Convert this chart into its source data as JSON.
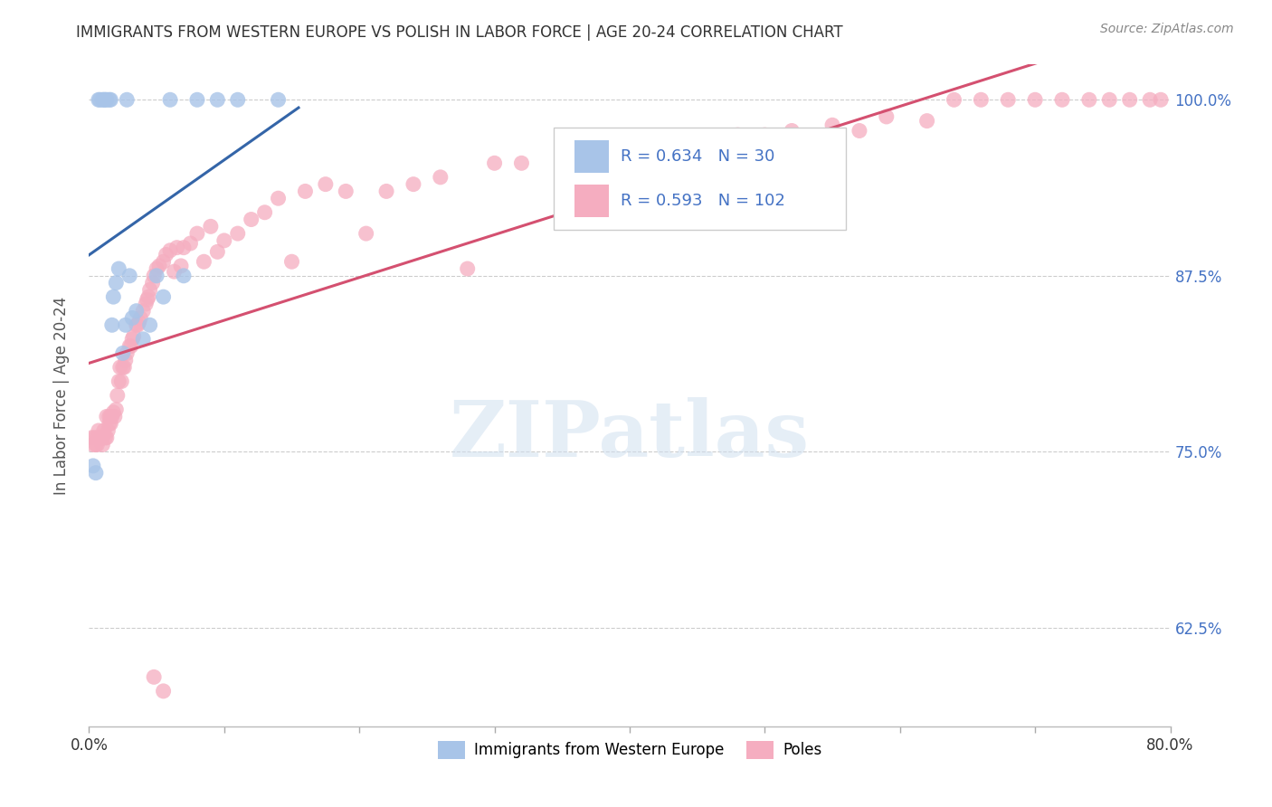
{
  "title": "IMMIGRANTS FROM WESTERN EUROPE VS POLISH IN LABOR FORCE | AGE 20-24 CORRELATION CHART",
  "source": "Source: ZipAtlas.com",
  "ylabel": "In Labor Force | Age 20-24",
  "ytick_labels": [
    "100.0%",
    "87.5%",
    "75.0%",
    "62.5%"
  ],
  "ytick_values": [
    1.0,
    0.875,
    0.75,
    0.625
  ],
  "xlim": [
    0.0,
    0.8
  ],
  "ylim": [
    0.555,
    1.025
  ],
  "legend_r_blue": "0.634",
  "legend_n_blue": "30",
  "legend_r_pink": "0.593",
  "legend_n_pink": "102",
  "legend_label_blue": "Immigrants from Western Europe",
  "legend_label_pink": "Poles",
  "blue_color": "#a8c4e8",
  "pink_color": "#f5adc0",
  "line_blue": "#3465a8",
  "line_pink": "#d45070",
  "text_blue": "#4472c4",
  "watermark": "ZIPatlas",
  "blue_x": [
    0.003,
    0.005,
    0.007,
    0.008,
    0.01,
    0.011,
    0.012,
    0.013,
    0.015,
    0.016,
    0.017,
    0.018,
    0.02,
    0.022,
    0.025,
    0.027,
    0.028,
    0.03,
    0.032,
    0.035,
    0.04,
    0.045,
    0.05,
    0.055,
    0.06,
    0.07,
    0.08,
    0.095,
    0.11,
    0.14
  ],
  "blue_y": [
    0.74,
    0.735,
    1.0,
    1.0,
    1.0,
    1.0,
    1.0,
    1.0,
    1.0,
    1.0,
    0.84,
    0.86,
    0.87,
    0.88,
    0.82,
    0.84,
    1.0,
    0.875,
    0.845,
    0.85,
    0.83,
    0.84,
    0.875,
    0.86,
    1.0,
    0.875,
    1.0,
    1.0,
    1.0,
    1.0
  ],
  "pink_x": [
    0.002,
    0.003,
    0.004,
    0.005,
    0.006,
    0.006,
    0.007,
    0.008,
    0.009,
    0.01,
    0.01,
    0.011,
    0.012,
    0.013,
    0.013,
    0.014,
    0.015,
    0.015,
    0.016,
    0.016,
    0.017,
    0.018,
    0.019,
    0.02,
    0.021,
    0.022,
    0.023,
    0.024,
    0.025,
    0.026,
    0.027,
    0.028,
    0.03,
    0.031,
    0.032,
    0.033,
    0.035,
    0.036,
    0.037,
    0.038,
    0.04,
    0.042,
    0.043,
    0.044,
    0.045,
    0.047,
    0.048,
    0.05,
    0.052,
    0.055,
    0.057,
    0.06,
    0.063,
    0.065,
    0.068,
    0.07,
    0.075,
    0.08,
    0.085,
    0.09,
    0.095,
    0.1,
    0.11,
    0.12,
    0.13,
    0.14,
    0.15,
    0.16,
    0.175,
    0.19,
    0.205,
    0.22,
    0.24,
    0.26,
    0.28,
    0.3,
    0.32,
    0.35,
    0.37,
    0.39,
    0.41,
    0.43,
    0.45,
    0.48,
    0.5,
    0.52,
    0.55,
    0.57,
    0.59,
    0.62,
    0.64,
    0.66,
    0.68,
    0.7,
    0.72,
    0.74,
    0.755,
    0.77,
    0.785,
    0.793,
    0.048,
    0.055
  ],
  "pink_y": [
    0.76,
    0.755,
    0.76,
    0.755,
    0.76,
    0.755,
    0.765,
    0.76,
    0.76,
    0.755,
    0.76,
    0.765,
    0.76,
    0.775,
    0.76,
    0.765,
    0.77,
    0.775,
    0.775,
    0.77,
    0.775,
    0.778,
    0.775,
    0.78,
    0.79,
    0.8,
    0.81,
    0.8,
    0.81,
    0.81,
    0.815,
    0.82,
    0.825,
    0.825,
    0.83,
    0.832,
    0.84,
    0.84,
    0.842,
    0.845,
    0.85,
    0.855,
    0.858,
    0.86,
    0.865,
    0.87,
    0.875,
    0.88,
    0.882,
    0.885,
    0.89,
    0.893,
    0.878,
    0.895,
    0.882,
    0.895,
    0.898,
    0.905,
    0.885,
    0.91,
    0.892,
    0.9,
    0.905,
    0.915,
    0.92,
    0.93,
    0.885,
    0.935,
    0.94,
    0.935,
    0.905,
    0.935,
    0.94,
    0.945,
    0.88,
    0.955,
    0.955,
    0.96,
    0.965,
    0.96,
    0.965,
    0.97,
    0.965,
    0.975,
    0.975,
    0.978,
    0.982,
    0.978,
    0.988,
    0.985,
    1.0,
    1.0,
    1.0,
    1.0,
    1.0,
    1.0,
    1.0,
    1.0,
    1.0,
    1.0,
    0.59,
    0.58
  ]
}
